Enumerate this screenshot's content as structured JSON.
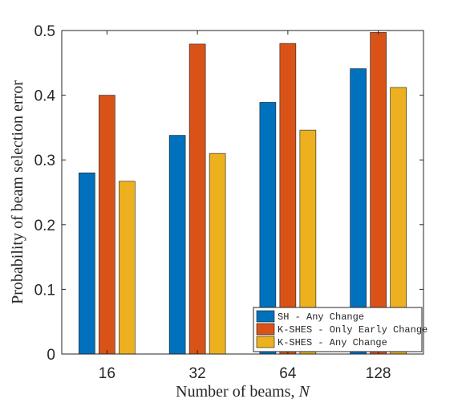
{
  "chart_data": {
    "type": "bar",
    "categories": [
      "16",
      "32",
      "64",
      "128"
    ],
    "series": [
      {
        "name": "SH - Any Change",
        "values": [
          0.28,
          0.338,
          0.389,
          0.441
        ],
        "color": "#0072BD"
      },
      {
        "name": "K-SHES - Only Early Change",
        "values": [
          0.4,
          0.479,
          0.48,
          0.497
        ],
        "color": "#D95319"
      },
      {
        "name": "K-SHES - Any Change",
        "values": [
          0.267,
          0.31,
          0.346,
          0.412
        ],
        "color": "#EDB120"
      }
    ],
    "xlabel": "Number of beams, N",
    "ylabel": "Probability of beam selection error",
    "ylim": [
      0,
      0.5
    ],
    "yticks": [
      "0",
      "0.1",
      "0.2",
      "0.3",
      "0.4",
      "0.5"
    ],
    "grid": false,
    "legend_position": "bottom-right"
  }
}
